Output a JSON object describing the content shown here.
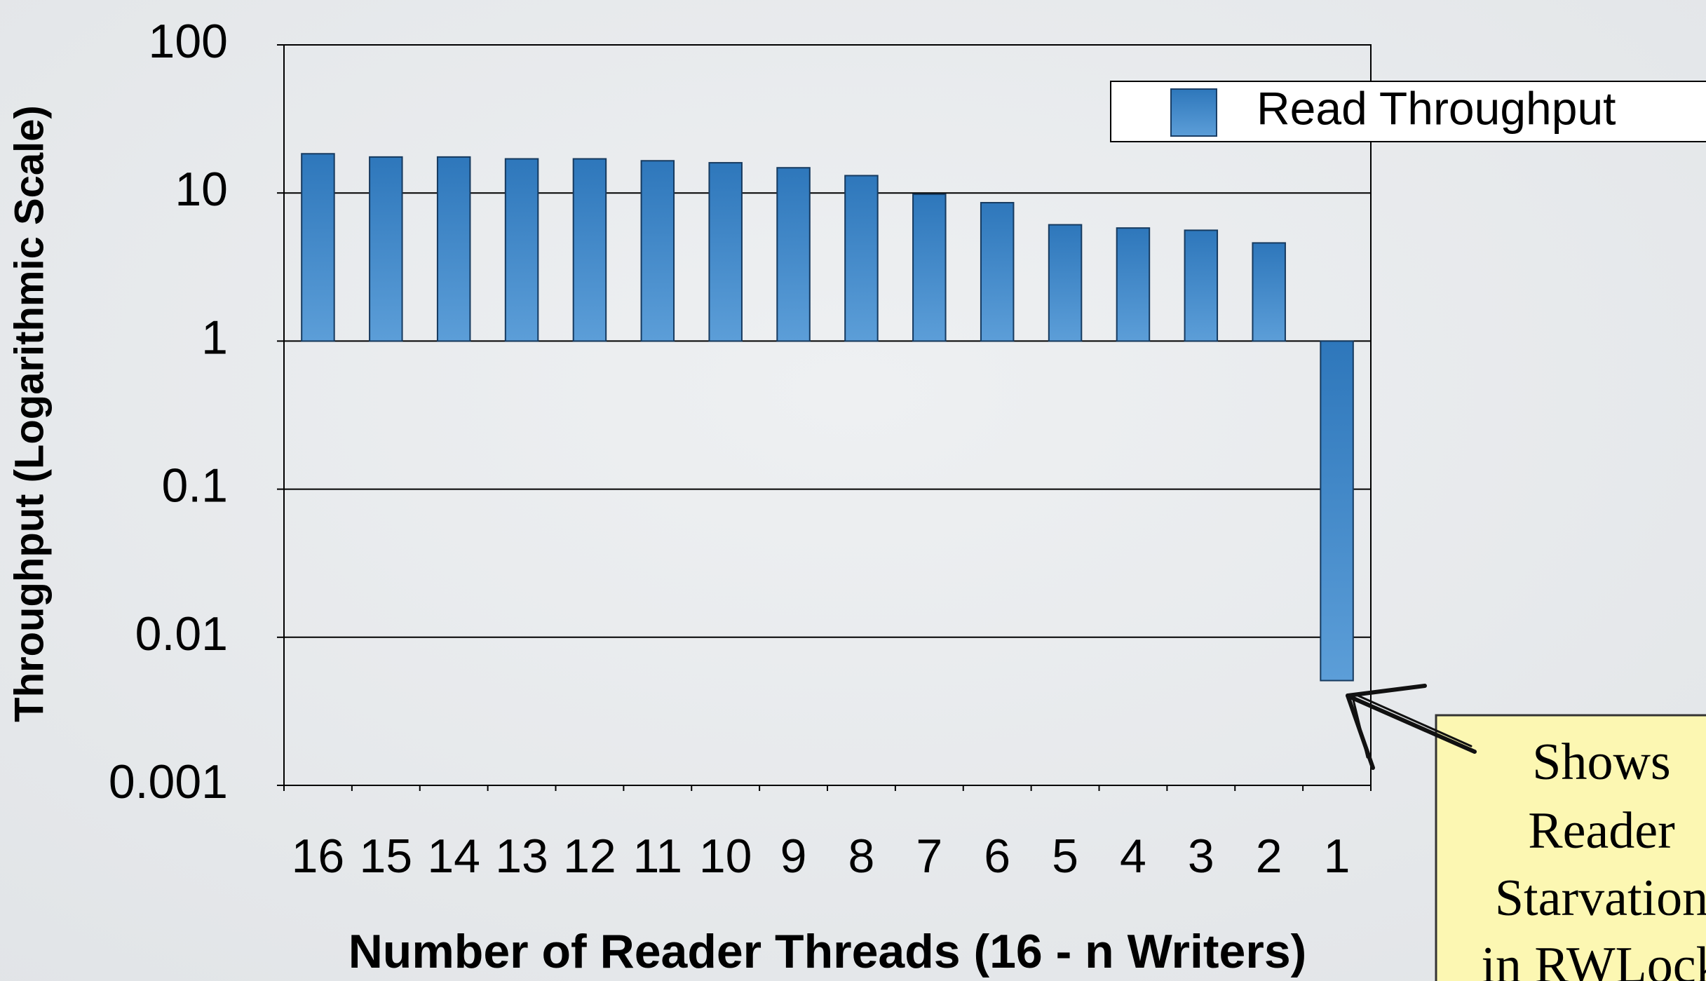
{
  "chart_data": {
    "type": "bar",
    "y_label": "Throughput (Logarithmic Scale)",
    "x_label": "Number of Reader Threads (16 - n Writers)",
    "categories": [
      "16",
      "15",
      "14",
      "13",
      "12",
      "11",
      "10",
      "9",
      "8",
      "7",
      "6",
      "5",
      "4",
      "3",
      "2",
      "1"
    ],
    "series": [
      {
        "name": "Read Throughput",
        "color": "#3a82c4",
        "values": [
          18.4,
          17.5,
          17.5,
          17,
          17,
          16.5,
          16,
          14.8,
          13.1,
          9.8,
          8.6,
          6.1,
          5.8,
          5.6,
          4.6,
          0.0051
        ]
      }
    ],
    "ylim": [
      0.001,
      100
    ],
    "yticks": [
      100,
      10,
      1,
      0.1,
      0.01,
      0.001
    ],
    "log_y": true,
    "grid": true,
    "legend": "upper right",
    "annotation": {
      "lines": [
        "Shows",
        "Reader",
        "Starvation",
        "in RWLock"
      ]
    }
  }
}
